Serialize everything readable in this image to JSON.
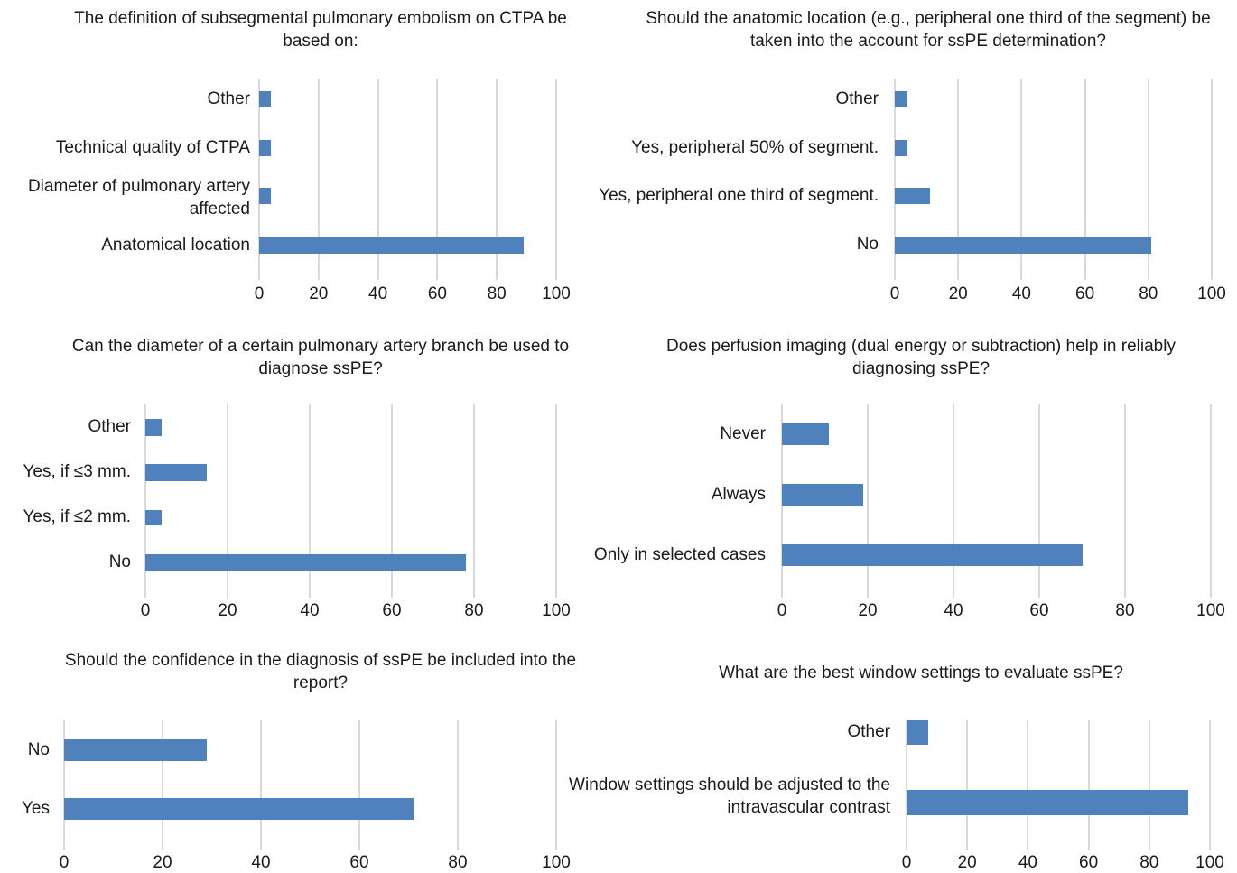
{
  "chart_data": [
    {
      "type": "bar",
      "orientation": "horizontal",
      "title": "The definition of subsegmental pulmonary embolism on CTPA be based on:",
      "categories": [
        "Other",
        "Technical quality of CTPA",
        "Diameter of pulmonary artery affected",
        "Anatomical location"
      ],
      "values": [
        4,
        4,
        4,
        89
      ],
      "xlim": [
        0,
        100
      ],
      "xticks": [
        "0",
        "20",
        "40",
        "60",
        "80",
        "100"
      ],
      "grid": true,
      "legend": "none"
    },
    {
      "type": "bar",
      "orientation": "horizontal",
      "title": "Should the anatomic location (e.g., peripheral one third of the segment) be taken into the account for ssPE determination?",
      "categories": [
        "Other",
        "Yes, peripheral 50% of segment.",
        "Yes, peripheral one third of segment.",
        "No"
      ],
      "values": [
        4,
        4,
        11,
        81
      ],
      "xlim": [
        0,
        100
      ],
      "xticks": [
        "0",
        "20",
        "40",
        "60",
        "80",
        "100"
      ],
      "grid": true,
      "legend": "none"
    },
    {
      "type": "bar",
      "orientation": "horizontal",
      "title": "Can the diameter of a certain pulmonary artery branch be used to diagnose ssPE?",
      "categories": [
        "Other",
        "Yes, if ≤3 mm.",
        "Yes, if ≤2 mm.",
        "No"
      ],
      "values": [
        4,
        15,
        4,
        78
      ],
      "xlim": [
        0,
        100
      ],
      "xticks": [
        "0",
        "20",
        "40",
        "60",
        "80",
        "100"
      ],
      "grid": true,
      "legend": "none"
    },
    {
      "type": "bar",
      "orientation": "horizontal",
      "title": "Does perfusion imaging (dual energy or subtraction) help in reliably diagnosing ssPE?",
      "categories": [
        "Never",
        "Always",
        "Only in selected cases"
      ],
      "values": [
        11,
        19,
        70
      ],
      "xlim": [
        0,
        100
      ],
      "xticks": [
        "0",
        "20",
        "40",
        "60",
        "80",
        "100"
      ],
      "grid": true,
      "legend": "none"
    },
    {
      "type": "bar",
      "orientation": "horizontal",
      "title": "Should the confidence in the diagnosis of ssPE be included into the report?",
      "categories": [
        "No",
        "Yes"
      ],
      "values": [
        29,
        71
      ],
      "xlim": [
        0,
        100
      ],
      "xticks": [
        "0",
        "20",
        "40",
        "60",
        "80",
        "100"
      ],
      "grid": true,
      "legend": "none"
    },
    {
      "type": "bar",
      "orientation": "horizontal",
      "title": "What are the best window settings to evaluate ssPE?",
      "categories": [
        "Other",
        "Window settings should be adjusted to the intravascular contrast"
      ],
      "values": [
        7,
        93
      ],
      "xlim": [
        0,
        100
      ],
      "xticks": [
        "0",
        "20",
        "40",
        "60",
        "80",
        "100"
      ],
      "grid": true,
      "legend": "none"
    }
  ],
  "colors": {
    "bar": "#4f81bd",
    "grid": "#d9d9d9"
  }
}
